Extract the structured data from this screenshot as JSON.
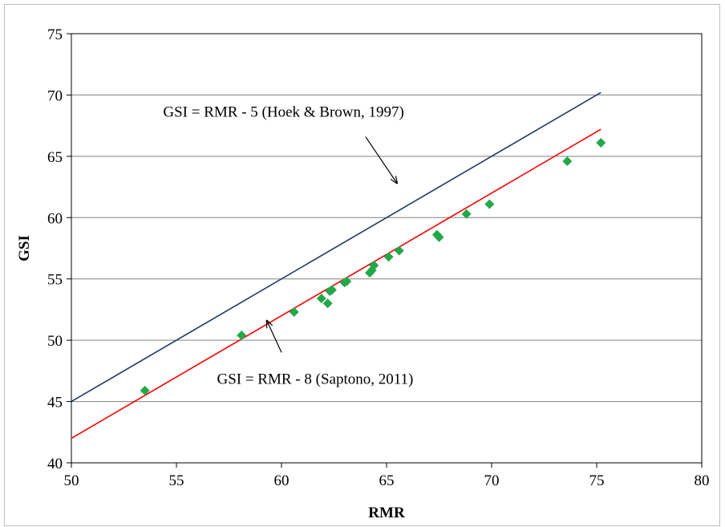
{
  "chart_data": {
    "type": "scatter",
    "title": "",
    "xlabel": "RMR",
    "ylabel": "GSI",
    "xlim": [
      50,
      80
    ],
    "ylim": [
      40,
      75
    ],
    "xticks": [
      50,
      55,
      60,
      65,
      70,
      75,
      80
    ],
    "yticks": [
      40,
      45,
      50,
      55,
      60,
      65,
      70,
      75
    ],
    "grid": "horizontal",
    "legend": "none",
    "series": [
      {
        "kind": "points",
        "marker": "diamond",
        "color": "#22a84a",
        "x": [
          53.5,
          58.1,
          60.6,
          61.9,
          62.2,
          62.3,
          62.4,
          63.0,
          63.1,
          64.2,
          64.3,
          64.4,
          65.1,
          65.6,
          67.4,
          67.5,
          68.8,
          69.9,
          73.6,
          75.2
        ],
        "y": [
          45.9,
          50.4,
          52.3,
          53.4,
          53.0,
          54.0,
          54.1,
          54.7,
          54.8,
          55.5,
          55.7,
          56.1,
          56.8,
          57.3,
          58.6,
          58.4,
          60.3,
          61.1,
          64.6,
          66.1
        ]
      },
      {
        "kind": "line",
        "color": "#1f3a68",
        "x": [
          50,
          75.2
        ],
        "y": [
          45,
          70.2
        ]
      },
      {
        "kind": "line",
        "color": "#ff0000",
        "x": [
          50,
          75.2
        ],
        "y": [
          42,
          67.2
        ]
      }
    ],
    "annotations": [
      {
        "text": "GSI = RMR - 5 (Hoek & Brown, 1997)",
        "text_x": 60.1,
        "text_y": 68.7,
        "arrow_from": [
          64.0,
          66.6
        ],
        "arrow_to": [
          65.5,
          62.8
        ]
      },
      {
        "text": "GSI = RMR - 8 (Saptono, 2011)",
        "text_x": 61.6,
        "text_y": 46.9,
        "arrow_from": [
          60.0,
          49.0
        ],
        "arrow_to": [
          59.3,
          51.6
        ]
      }
    ]
  }
}
